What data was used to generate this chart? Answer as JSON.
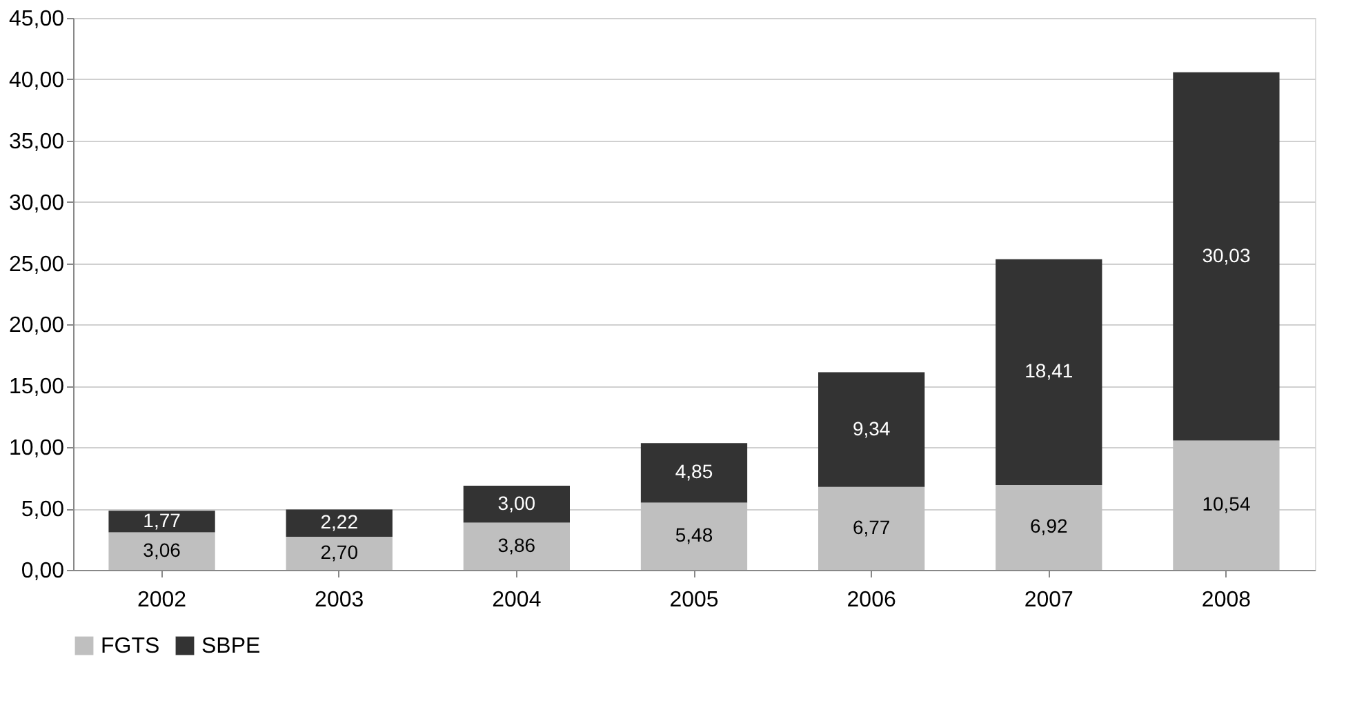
{
  "chart_data": {
    "type": "bar",
    "stacked": true,
    "categories": [
      "2002",
      "2003",
      "2004",
      "2005",
      "2006",
      "2007",
      "2008"
    ],
    "series": [
      {
        "name": "FGTS",
        "color": "#bfbfbf",
        "values": [
          3.06,
          2.7,
          3.86,
          5.48,
          6.77,
          6.92,
          10.54
        ],
        "value_labels": [
          "3,06",
          "2,70",
          "3,86",
          "5,48",
          "6,77",
          "6,92",
          "10,54"
        ]
      },
      {
        "name": "SBPE",
        "color": "#333333",
        "values": [
          1.77,
          2.22,
          3.0,
          4.85,
          9.34,
          18.41,
          30.03
        ],
        "value_labels": [
          "1,77",
          "2,22",
          "3,00",
          "4,85",
          "9,34",
          "18,41",
          "30,03"
        ]
      }
    ],
    "ylim": [
      0,
      45
    ],
    "yticks": [
      {
        "value": 0,
        "label": "0,00"
      },
      {
        "value": 5,
        "label": "5,00"
      },
      {
        "value": 10,
        "label": "10,00"
      },
      {
        "value": 15,
        "label": "15,00"
      },
      {
        "value": 20,
        "label": "20,00"
      },
      {
        "value": 25,
        "label": "25,00"
      },
      {
        "value": 30,
        "label": "30,00"
      },
      {
        "value": 35,
        "label": "35,00"
      },
      {
        "value": 40,
        "label": "40,00"
      },
      {
        "value": 45,
        "label": "45,00"
      }
    ],
    "grid": "y",
    "legend": "bottom"
  }
}
